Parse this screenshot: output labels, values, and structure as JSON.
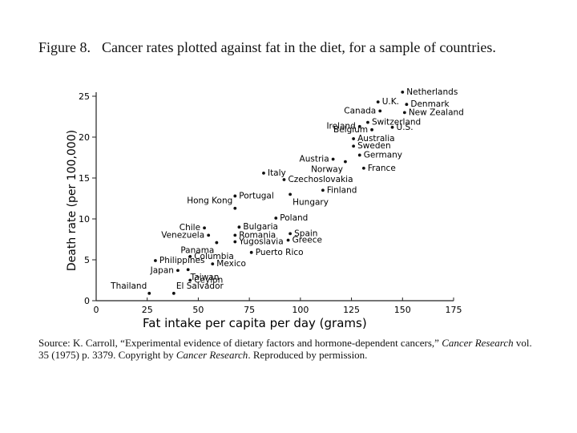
{
  "figure": {
    "label": "Figure 8.",
    "caption": "Cancer rates plotted against fat in the diet, for a sample of countries."
  },
  "source": {
    "prefix": "Source: K. Carroll, “Experimental evidence of dietary factors and hormone-dependent cancers,”",
    "journal": "Cancer Research",
    "middle": "vol. 35 (1975) p. 3379. Copyright by",
    "journal2": "Cancer Research",
    "suffix": ". Reproduced by permission."
  },
  "chart_data": {
    "type": "scatter",
    "xlabel": "Fat intake per capita per day (grams)",
    "ylabel": "Death rate (per 100,000)",
    "xlim": [
      0,
      175
    ],
    "ylim": [
      0,
      25
    ],
    "xticks": [
      0,
      25,
      50,
      75,
      100,
      125,
      150,
      175
    ],
    "yticks": [
      0,
      5,
      10,
      15,
      20,
      25
    ],
    "grid": false,
    "points": [
      {
        "label": "Netherlands",
        "x": 150,
        "y": 25.5,
        "label_pos": "right"
      },
      {
        "label": "U.K.",
        "x": 138,
        "y": 24.3,
        "label_pos": "right"
      },
      {
        "label": "Denmark",
        "x": 152,
        "y": 24.0,
        "label_pos": "right"
      },
      {
        "label": "Canada",
        "x": 139,
        "y": 23.2,
        "label_pos": "left"
      },
      {
        "label": "New Zealand",
        "x": 151,
        "y": 23.0,
        "label_pos": "right"
      },
      {
        "label": "Switzerland",
        "x": 133,
        "y": 21.8,
        "label_pos": "right"
      },
      {
        "label": "Ireland",
        "x": 129,
        "y": 21.3,
        "label_pos": "left"
      },
      {
        "label": "U.S.",
        "x": 145,
        "y": 21.2,
        "label_pos": "right"
      },
      {
        "label": "Belgium",
        "x": 135,
        "y": 20.9,
        "label_pos": "left"
      },
      {
        "label": "Australia",
        "x": 126,
        "y": 19.8,
        "label_pos": "right"
      },
      {
        "label": "Sweden",
        "x": 126,
        "y": 18.9,
        "label_pos": "right"
      },
      {
        "label": "Germany",
        "x": 129,
        "y": 17.8,
        "label_pos": "right"
      },
      {
        "label": "Austria",
        "x": 116,
        "y": 17.3,
        "label_pos": "left"
      },
      {
        "label": "France",
        "x": 131,
        "y": 16.2,
        "label_pos": "right"
      },
      {
        "label": "Norway",
        "x": 122,
        "y": 17.0,
        "label_pos": "below-left"
      },
      {
        "label": "Italy",
        "x": 82,
        "y": 15.6,
        "label_pos": "right"
      },
      {
        "label": "Czechoslovakia",
        "x": 92,
        "y": 14.8,
        "label_pos": "right"
      },
      {
        "label": "Finland",
        "x": 111,
        "y": 13.5,
        "label_pos": "right"
      },
      {
        "label": "Hungary",
        "x": 95,
        "y": 13.0,
        "label_pos": "below-right"
      },
      {
        "label": "Portugal",
        "x": 68,
        "y": 12.8,
        "label_pos": "right"
      },
      {
        "label": "Hong Kong",
        "x": 68,
        "y": 11.3,
        "label_pos": "above-left"
      },
      {
        "label": "Poland",
        "x": 88,
        "y": 10.1,
        "label_pos": "right"
      },
      {
        "label": "Chile",
        "x": 53,
        "y": 8.9,
        "label_pos": "left"
      },
      {
        "label": "Bulgaria",
        "x": 70,
        "y": 9.0,
        "label_pos": "right"
      },
      {
        "label": "Venezuela",
        "x": 55,
        "y": 8.0,
        "label_pos": "left"
      },
      {
        "label": "Romania",
        "x": 68,
        "y": 8.0,
        "label_pos": "right"
      },
      {
        "label": "Spain",
        "x": 95,
        "y": 8.2,
        "label_pos": "right"
      },
      {
        "label": "Greece",
        "x": 94,
        "y": 7.4,
        "label_pos": "right"
      },
      {
        "label": "Panama",
        "x": 59,
        "y": 7.1,
        "label_pos": "below-left"
      },
      {
        "label": "Yugoslavia",
        "x": 68,
        "y": 7.2,
        "label_pos": "right"
      },
      {
        "label": "Puerto Rico",
        "x": 76,
        "y": 5.9,
        "label_pos": "right"
      },
      {
        "label": "Columbia",
        "x": 46,
        "y": 5.4,
        "label_pos": "right"
      },
      {
        "label": "Philippines",
        "x": 29,
        "y": 4.9,
        "label_pos": "right"
      },
      {
        "label": "Mexico",
        "x": 57,
        "y": 4.5,
        "label_pos": "right"
      },
      {
        "label": "Japan",
        "x": 40,
        "y": 3.7,
        "label_pos": "left"
      },
      {
        "label": "Taiwan",
        "x": 45,
        "y": 3.8,
        "label_pos": "below-right"
      },
      {
        "label": "Ceylon",
        "x": 46,
        "y": 2.5,
        "label_pos": "right"
      },
      {
        "label": "Thailand",
        "x": 26,
        "y": 0.9,
        "label_pos": "above-left"
      },
      {
        "label": "El Salvador",
        "x": 38,
        "y": 0.9,
        "label_pos": "above-right"
      }
    ]
  }
}
